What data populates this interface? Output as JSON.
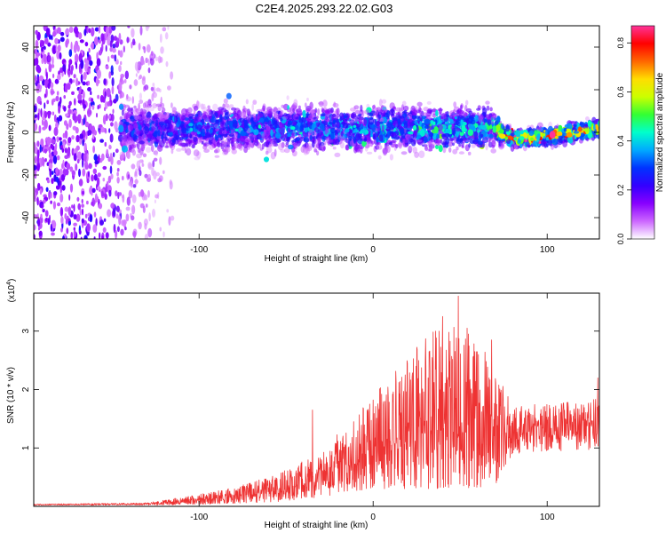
{
  "title": "C2E4.2025.293.22.02.G03",
  "chart_data": [
    {
      "type": "heatmap",
      "title": "C2E4.2025.293.22.02.G03",
      "xlabel": "Height of straight line (km)",
      "ylabel": "Frequency (Hz)",
      "xlim": [
        -195,
        130
      ],
      "ylim": [
        -50,
        50
      ],
      "xticks": [
        -100,
        0,
        100
      ],
      "xtick_labels": [
        "-100",
        "0",
        "100"
      ],
      "yticks": [
        -40,
        -20,
        0,
        20,
        40
      ],
      "ytick_labels": [
        "-40",
        "-20",
        "0",
        "20",
        "40"
      ],
      "colorbar": {
        "label": "Normalized spectral amplitude",
        "range": [
          0,
          0.87
        ],
        "ticks": [
          0.0,
          0.2,
          0.4,
          0.6,
          0.8
        ],
        "tick_labels": [
          "0.0",
          "0.2",
          "0.4",
          "0.6",
          "0.8"
        ],
        "colors": [
          "#ffffff",
          "#cc66ff",
          "#8800ff",
          "#3300ff",
          "#0033ff",
          "#00aaff",
          "#00ffcc",
          "#33ff33",
          "#ccff00",
          "#ffdd00",
          "#ff6600",
          "#ff0000",
          "#ff3399"
        ]
      },
      "band": {
        "noise_region_x": [
          -195,
          -125
        ],
        "band_x": [
          -145,
          130
        ],
        "band_center_hz": [
          {
            "x": -145,
            "y": 2
          },
          {
            "x": -50,
            "y": 2
          },
          {
            "x": 0,
            "y": 2
          },
          {
            "x": 70,
            "y": 2
          },
          {
            "x": 80,
            "y": -3
          },
          {
            "x": 100,
            "y": -2
          },
          {
            "x": 130,
            "y": 2
          }
        ],
        "band_halfwidth_hz": [
          {
            "x": -145,
            "y": 14
          },
          {
            "x": 70,
            "y": 12
          },
          {
            "x": 75,
            "y": 5
          },
          {
            "x": 130,
            "y": 5
          }
        ],
        "peak_amplitude": [
          {
            "x": -145,
            "y": 0.3
          },
          {
            "x": 0,
            "y": 0.4
          },
          {
            "x": 70,
            "y": 0.45
          },
          {
            "x": 75,
            "y": 0.75
          },
          {
            "x": 130,
            "y": 0.75
          }
        ]
      }
    },
    {
      "type": "line",
      "xlabel": "Height of straight line (km)",
      "ylabel": "SNR (10 * v/v)",
      "y_multiplier_label": "(x10",
      "y_multiplier_exp": "4",
      "y_multiplier_close": ")",
      "xlim": [
        -195,
        130
      ],
      "ylim": [
        0,
        3.65
      ],
      "xticks": [
        -100,
        0,
        100
      ],
      "xtick_labels": [
        "-100",
        "0",
        "100"
      ],
      "yticks": [
        1,
        2,
        3
      ],
      "ytick_labels": [
        "1",
        "2",
        "3"
      ],
      "series": [
        {
          "name": "SNR",
          "color": "#ee3333",
          "envelope": [
            {
              "x": -195,
              "lo": 0.02,
              "hi": 0.04
            },
            {
              "x": -130,
              "lo": 0.02,
              "hi": 0.06
            },
            {
              "x": -105,
              "lo": 0.03,
              "hi": 0.18
            },
            {
              "x": -80,
              "lo": 0.05,
              "hi": 0.32
            },
            {
              "x": -55,
              "lo": 0.08,
              "hi": 0.55
            },
            {
              "x": -30,
              "lo": 0.15,
              "hi": 0.95
            },
            {
              "x": -15,
              "lo": 0.25,
              "hi": 1.4
            },
            {
              "x": 0,
              "lo": 0.3,
              "hi": 1.9
            },
            {
              "x": 15,
              "lo": 0.3,
              "hi": 2.4
            },
            {
              "x": 30,
              "lo": 0.3,
              "hi": 2.9
            },
            {
              "x": 45,
              "lo": 0.3,
              "hi": 3.3
            },
            {
              "x": 60,
              "lo": 0.3,
              "hi": 2.9
            },
            {
              "x": 72,
              "lo": 0.4,
              "hi": 2.2
            },
            {
              "x": 80,
              "lo": 0.9,
              "hi": 1.75
            },
            {
              "x": 100,
              "lo": 0.95,
              "hi": 1.75
            },
            {
              "x": 130,
              "lo": 0.95,
              "hi": 1.85
            }
          ],
          "peaks": [
            {
              "x": 49,
              "y": 3.6
            },
            {
              "x": 40,
              "y": 3.25
            },
            {
              "x": 36,
              "y": 3.0
            },
            {
              "x": 54,
              "y": 3.05
            },
            {
              "x": 68,
              "y": 2.85
            },
            {
              "x": 129,
              "y": 2.2
            },
            {
              "x": -35,
              "y": 1.65
            }
          ]
        }
      ]
    }
  ]
}
